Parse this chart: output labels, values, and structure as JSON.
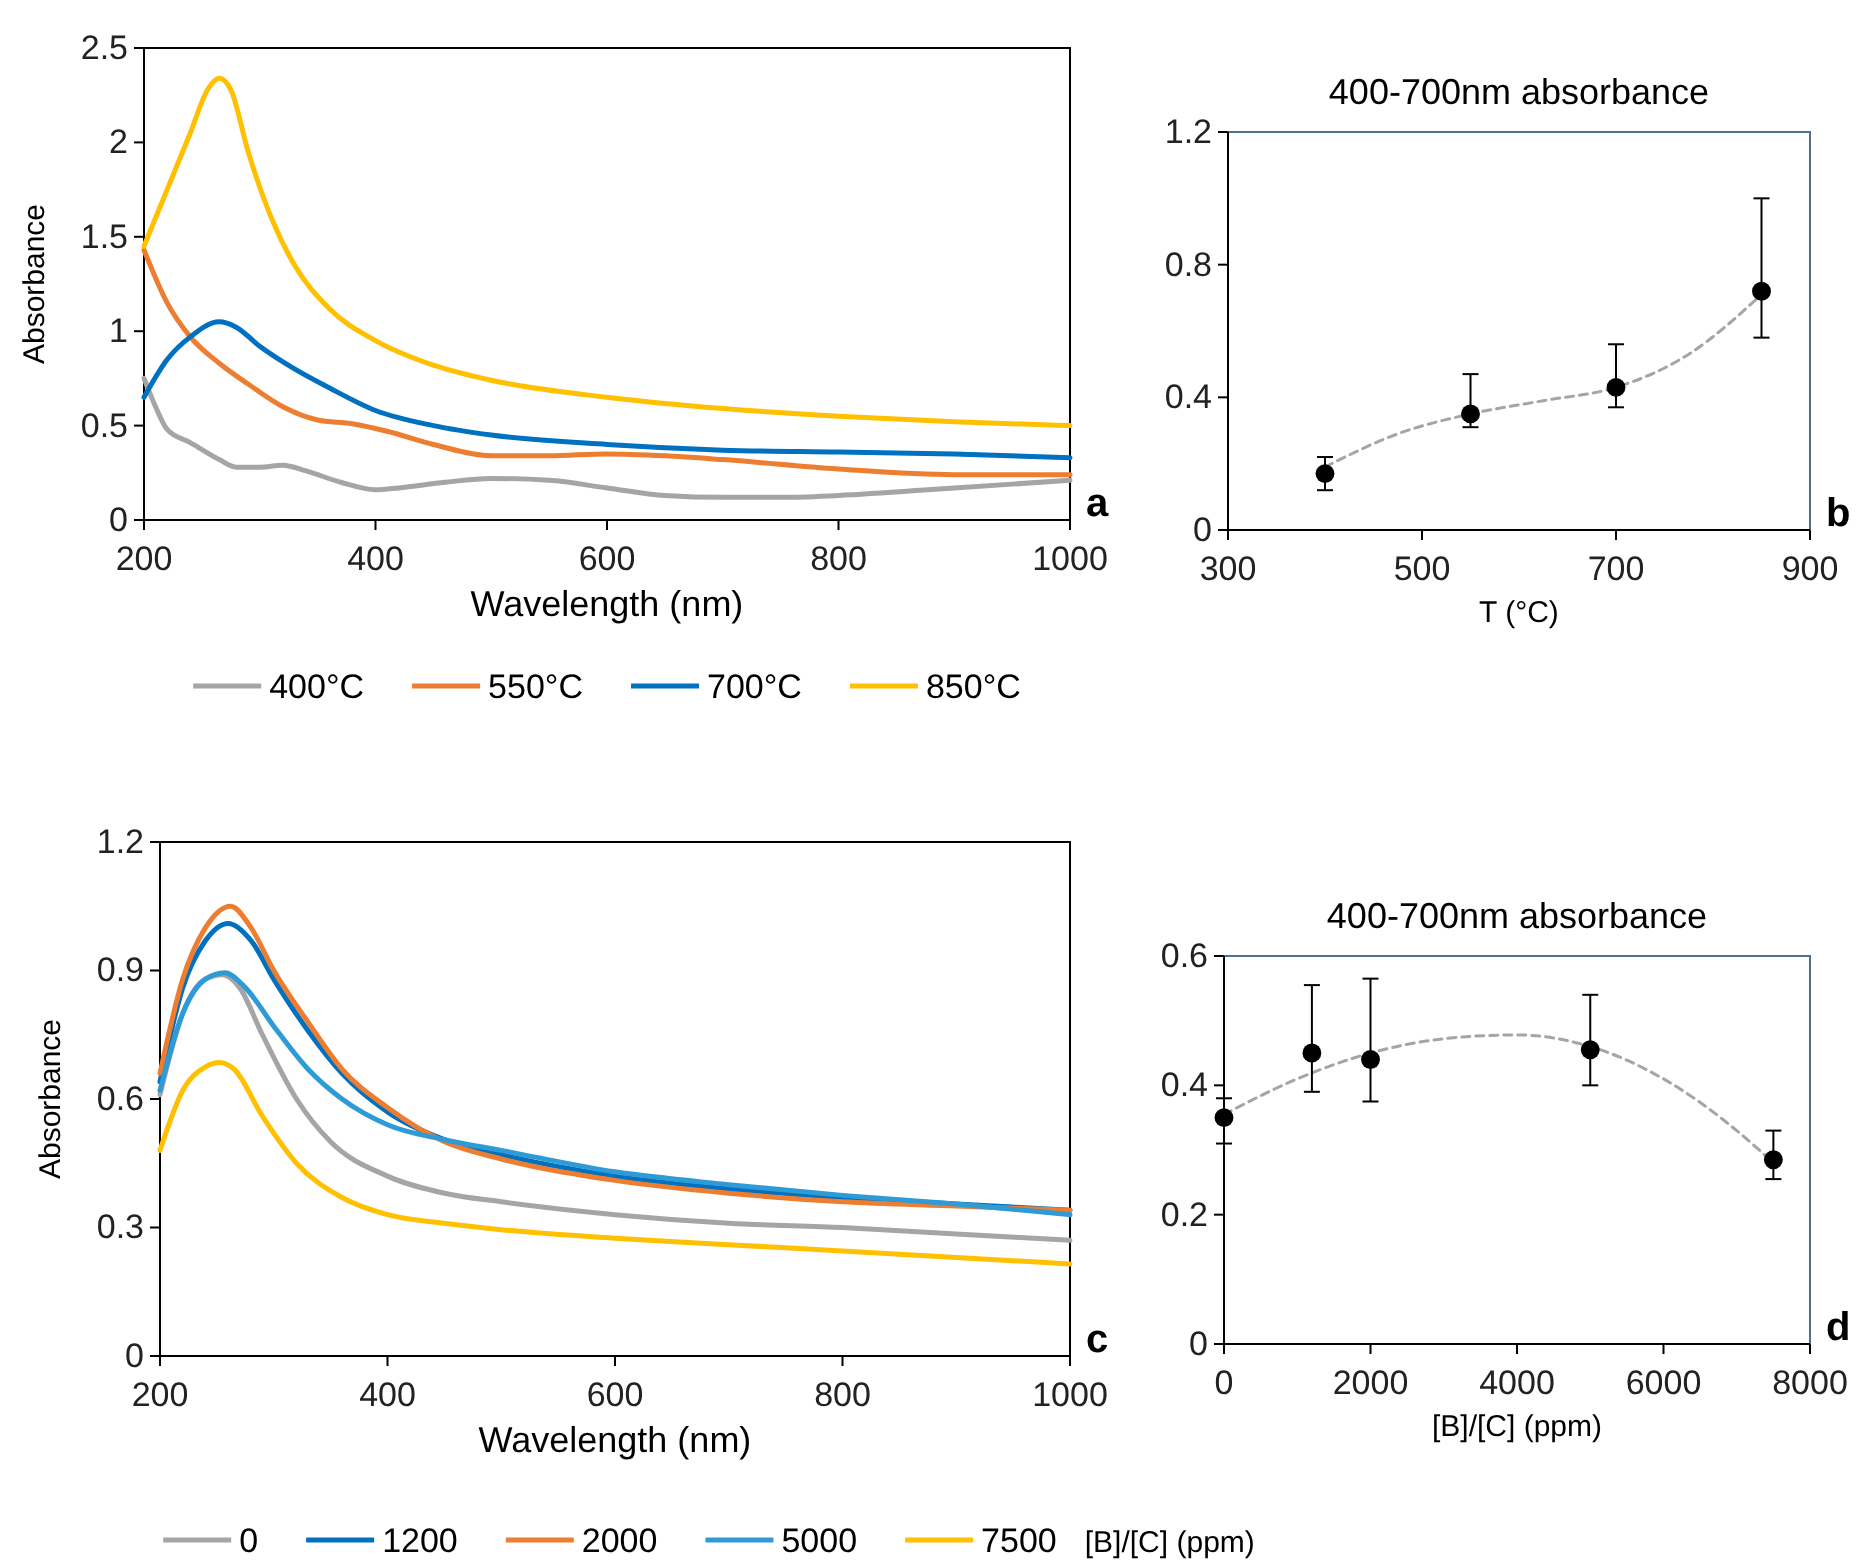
{
  "chart_data": [
    {
      "type": "line",
      "xlabel": "Wavelength (nm)",
      "ylabel": "Absorbance",
      "xlim": [
        200,
        1000
      ],
      "ylim": [
        0,
        2.5
      ],
      "xticks": [
        200,
        400,
        600,
        800,
        1000
      ],
      "yticks": [
        0,
        0.5,
        1,
        1.5,
        2,
        2.5
      ],
      "legend": "bottom",
      "annotations": [
        "a"
      ],
      "series": [
        {
          "name": "400°C",
          "color": "#a5a5a5",
          "x": [
            200,
            210,
            220,
            240,
            265,
            280,
            300,
            320,
            340,
            370,
            400,
            420,
            460,
            500,
            550,
            600,
            650,
            700,
            750,
            800,
            900,
            1000
          ],
          "values": [
            0.75,
            0.6,
            0.48,
            0.41,
            0.32,
            0.28,
            0.28,
            0.29,
            0.26,
            0.2,
            0.16,
            0.17,
            0.2,
            0.22,
            0.21,
            0.17,
            0.13,
            0.12,
            0.12,
            0.13,
            0.17,
            0.21
          ]
        },
        {
          "name": "550°C",
          "color": "#ed7d31",
          "x": [
            200,
            220,
            240,
            265,
            290,
            320,
            350,
            380,
            410,
            450,
            500,
            550,
            600,
            650,
            700,
            800,
            900,
            1000
          ],
          "values": [
            1.43,
            1.15,
            0.97,
            0.83,
            0.72,
            0.6,
            0.53,
            0.51,
            0.47,
            0.4,
            0.34,
            0.34,
            0.35,
            0.34,
            0.32,
            0.27,
            0.24,
            0.24
          ]
        },
        {
          "name": "700°C",
          "color": "#0070c0",
          "x": [
            200,
            220,
            240,
            265,
            280,
            300,
            330,
            360,
            400,
            450,
            500,
            600,
            700,
            800,
            900,
            1000
          ],
          "values": [
            0.65,
            0.85,
            0.97,
            1.05,
            1.02,
            0.92,
            0.8,
            0.7,
            0.58,
            0.5,
            0.45,
            0.4,
            0.37,
            0.36,
            0.35,
            0.33
          ]
        },
        {
          "name": "850°C",
          "color": "#ffc000",
          "x": [
            200,
            220,
            240,
            255,
            265,
            275,
            290,
            310,
            330,
            360,
            400,
            450,
            500,
            600,
            700,
            800,
            900,
            1000
          ],
          "values": [
            1.45,
            1.75,
            2.05,
            2.28,
            2.34,
            2.28,
            1.95,
            1.6,
            1.35,
            1.12,
            0.95,
            0.82,
            0.74,
            0.65,
            0.59,
            0.55,
            0.52,
            0.5
          ]
        }
      ]
    },
    {
      "type": "scatter",
      "title": "400-700nm absorbance",
      "xlabel": "T (°C)",
      "xlim": [
        300,
        900
      ],
      "ylim": [
        0,
        1.2
      ],
      "xticks": [
        300,
        500,
        700,
        900
      ],
      "yticks": [
        0,
        0.4,
        0.8,
        1.2
      ],
      "legend": false,
      "marker": "circle",
      "annotations": [
        "b"
      ],
      "series": [
        {
          "color": "#000000",
          "x": [
            400,
            550,
            700,
            850
          ],
          "values": [
            0.17,
            0.35,
            0.43,
            0.72
          ],
          "errors": [
            [
              0.12,
              0.22
            ],
            [
              0.31,
              0.47
            ],
            [
              0.37,
              0.56
            ],
            [
              0.58,
              1.0
            ]
          ]
        },
        {
          "type": "line",
          "color": "#a5a5a5",
          "line_style": "dashed",
          "marker": "none",
          "x": [
            400,
            475,
            550,
            625,
            700,
            775,
            850
          ],
          "values": [
            0.19,
            0.29,
            0.35,
            0.39,
            0.43,
            0.53,
            0.71
          ]
        }
      ]
    },
    {
      "type": "line",
      "xlabel": "Wavelength (nm)",
      "ylabel": "Absorbance",
      "xlim": [
        200,
        1000
      ],
      "ylim": [
        0,
        1.2
      ],
      "xticks": [
        200,
        400,
        600,
        800,
        1000
      ],
      "yticks": [
        0,
        0.3,
        0.6,
        0.9,
        1.2
      ],
      "legend": "bottom",
      "legend_title": "[B]/[C] (ppm)",
      "annotations": [
        "c"
      ],
      "series": [
        {
          "name": "0",
          "color": "#a5a5a5",
          "x": [
            200,
            220,
            240,
            255,
            270,
            290,
            320,
            350,
            400,
            450,
            500,
            600,
            700,
            800,
            900,
            1000
          ],
          "values": [
            0.61,
            0.8,
            0.88,
            0.89,
            0.86,
            0.75,
            0.6,
            0.5,
            0.42,
            0.38,
            0.36,
            0.33,
            0.31,
            0.3,
            0.285,
            0.27
          ]
        },
        {
          "name": "1200",
          "color": "#0070c0",
          "x": [
            200,
            220,
            240,
            260,
            280,
            300,
            330,
            360,
            400,
            450,
            500,
            600,
            700,
            800,
            900,
            1000
          ],
          "values": [
            0.64,
            0.86,
            0.97,
            1.01,
            0.97,
            0.88,
            0.76,
            0.66,
            0.57,
            0.505,
            0.47,
            0.42,
            0.39,
            0.37,
            0.355,
            0.34
          ]
        },
        {
          "name": "2000",
          "color": "#ed7d31",
          "x": [
            200,
            220,
            240,
            262,
            280,
            300,
            330,
            360,
            400,
            450,
            500,
            600,
            700,
            800,
            900,
            1000
          ],
          "values": [
            0.66,
            0.88,
            1.0,
            1.05,
            1.0,
            0.9,
            0.78,
            0.67,
            0.58,
            0.5,
            0.46,
            0.41,
            0.38,
            0.36,
            0.35,
            0.34
          ]
        },
        {
          "name": "5000",
          "color": "#2e9bd6",
          "x": [
            200,
            220,
            240,
            257,
            275,
            300,
            330,
            360,
            400,
            450,
            500,
            600,
            700,
            800,
            900,
            1000
          ],
          "values": [
            0.62,
            0.8,
            0.88,
            0.895,
            0.86,
            0.77,
            0.67,
            0.6,
            0.54,
            0.505,
            0.48,
            0.43,
            0.4,
            0.375,
            0.355,
            0.33
          ]
        },
        {
          "name": "7500",
          "color": "#ffc000",
          "x": [
            200,
            220,
            240,
            252,
            265,
            290,
            320,
            360,
            400,
            450,
            500,
            600,
            700,
            800,
            900,
            1000
          ],
          "values": [
            0.48,
            0.62,
            0.675,
            0.685,
            0.67,
            0.56,
            0.45,
            0.37,
            0.33,
            0.31,
            0.295,
            0.275,
            0.26,
            0.245,
            0.23,
            0.215
          ]
        }
      ]
    },
    {
      "type": "scatter",
      "title": "400-700nm absorbance",
      "xlabel": "[B]/[C] (ppm)",
      "xlim": [
        0,
        8000
      ],
      "ylim": [
        0,
        0.6
      ],
      "xticks": [
        0,
        2000,
        4000,
        6000,
        8000
      ],
      "yticks": [
        0,
        0.2,
        0.4,
        0.6
      ],
      "legend": false,
      "marker": "circle",
      "annotations": [
        "d"
      ],
      "series": [
        {
          "color": "#000000",
          "x": [
            0,
            1200,
            2000,
            5000,
            7500
          ],
          "values": [
            0.35,
            0.45,
            0.44,
            0.455,
            0.285
          ],
          "errors": [
            [
              0.31,
              0.38
            ],
            [
              0.39,
              0.555
            ],
            [
              0.375,
              0.565
            ],
            [
              0.4,
              0.54
            ],
            [
              0.255,
              0.33
            ]
          ]
        },
        {
          "type": "line",
          "color": "#a5a5a5",
          "line_style": "dashed",
          "marker": "none",
          "x": [
            0,
            1000,
            2000,
            3000,
            4000,
            5000,
            6000,
            7000,
            7500
          ],
          "values": [
            0.355,
            0.41,
            0.45,
            0.472,
            0.478,
            0.46,
            0.41,
            0.33,
            0.28
          ]
        }
      ]
    }
  ]
}
